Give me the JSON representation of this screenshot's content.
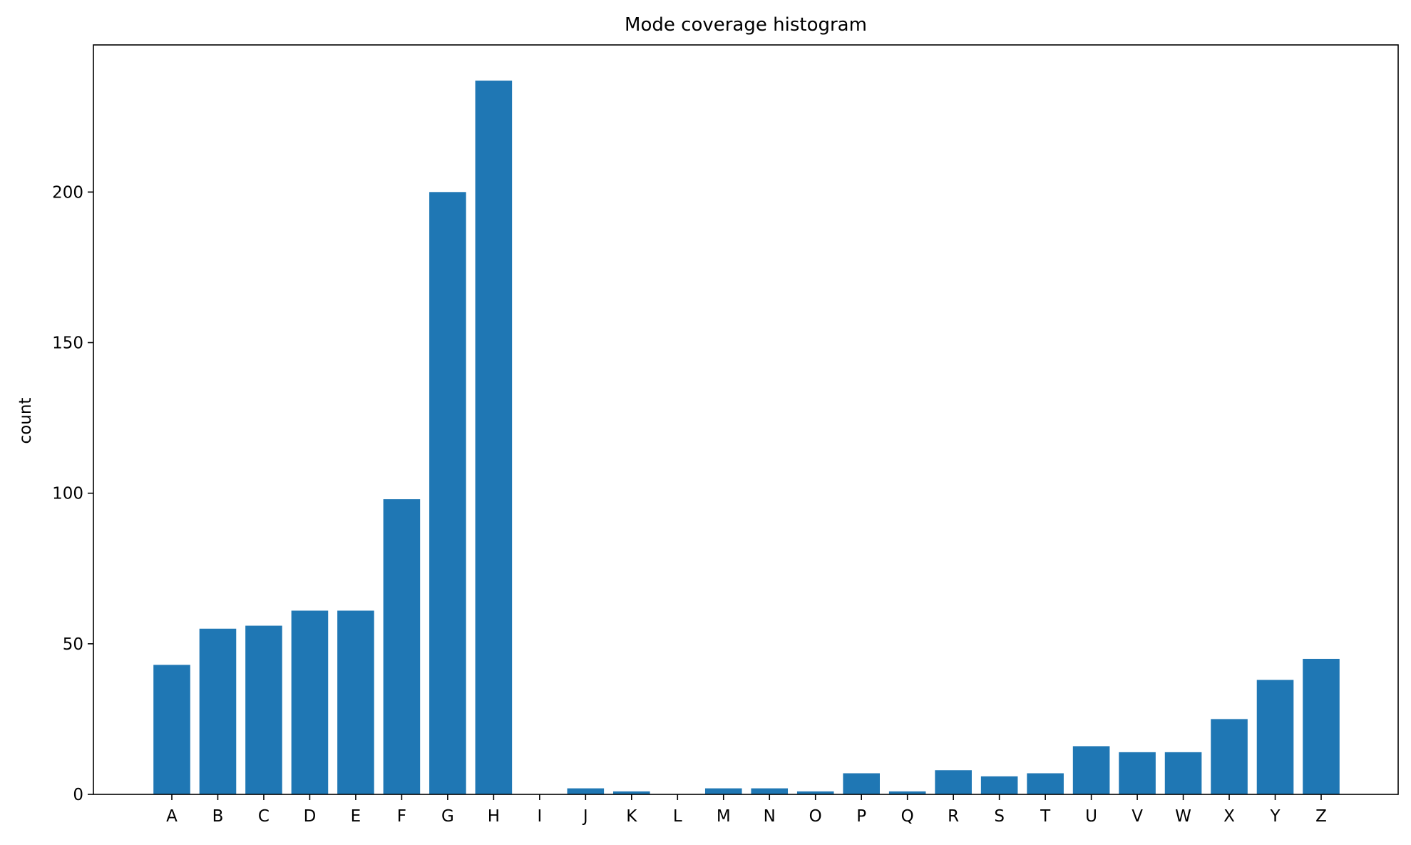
{
  "chart_data": {
    "type": "bar",
    "title": "Mode coverage histogram",
    "xlabel": "",
    "ylabel": "count",
    "categories": [
      "A",
      "B",
      "C",
      "D",
      "E",
      "F",
      "G",
      "H",
      "I",
      "J",
      "K",
      "L",
      "M",
      "N",
      "O",
      "P",
      "Q",
      "R",
      "S",
      "T",
      "U",
      "V",
      "W",
      "X",
      "Y",
      "Z"
    ],
    "values": [
      43,
      55,
      56,
      61,
      61,
      98,
      200,
      237,
      0,
      2,
      1,
      0,
      2,
      2,
      1,
      7,
      1,
      8,
      6,
      7,
      16,
      14,
      14,
      25,
      38,
      45
    ],
    "yticks": [
      0,
      50,
      100,
      150,
      200
    ],
    "ylim": [
      0,
      248.85
    ],
    "grid": false,
    "bar_color": "#1f77b4"
  }
}
